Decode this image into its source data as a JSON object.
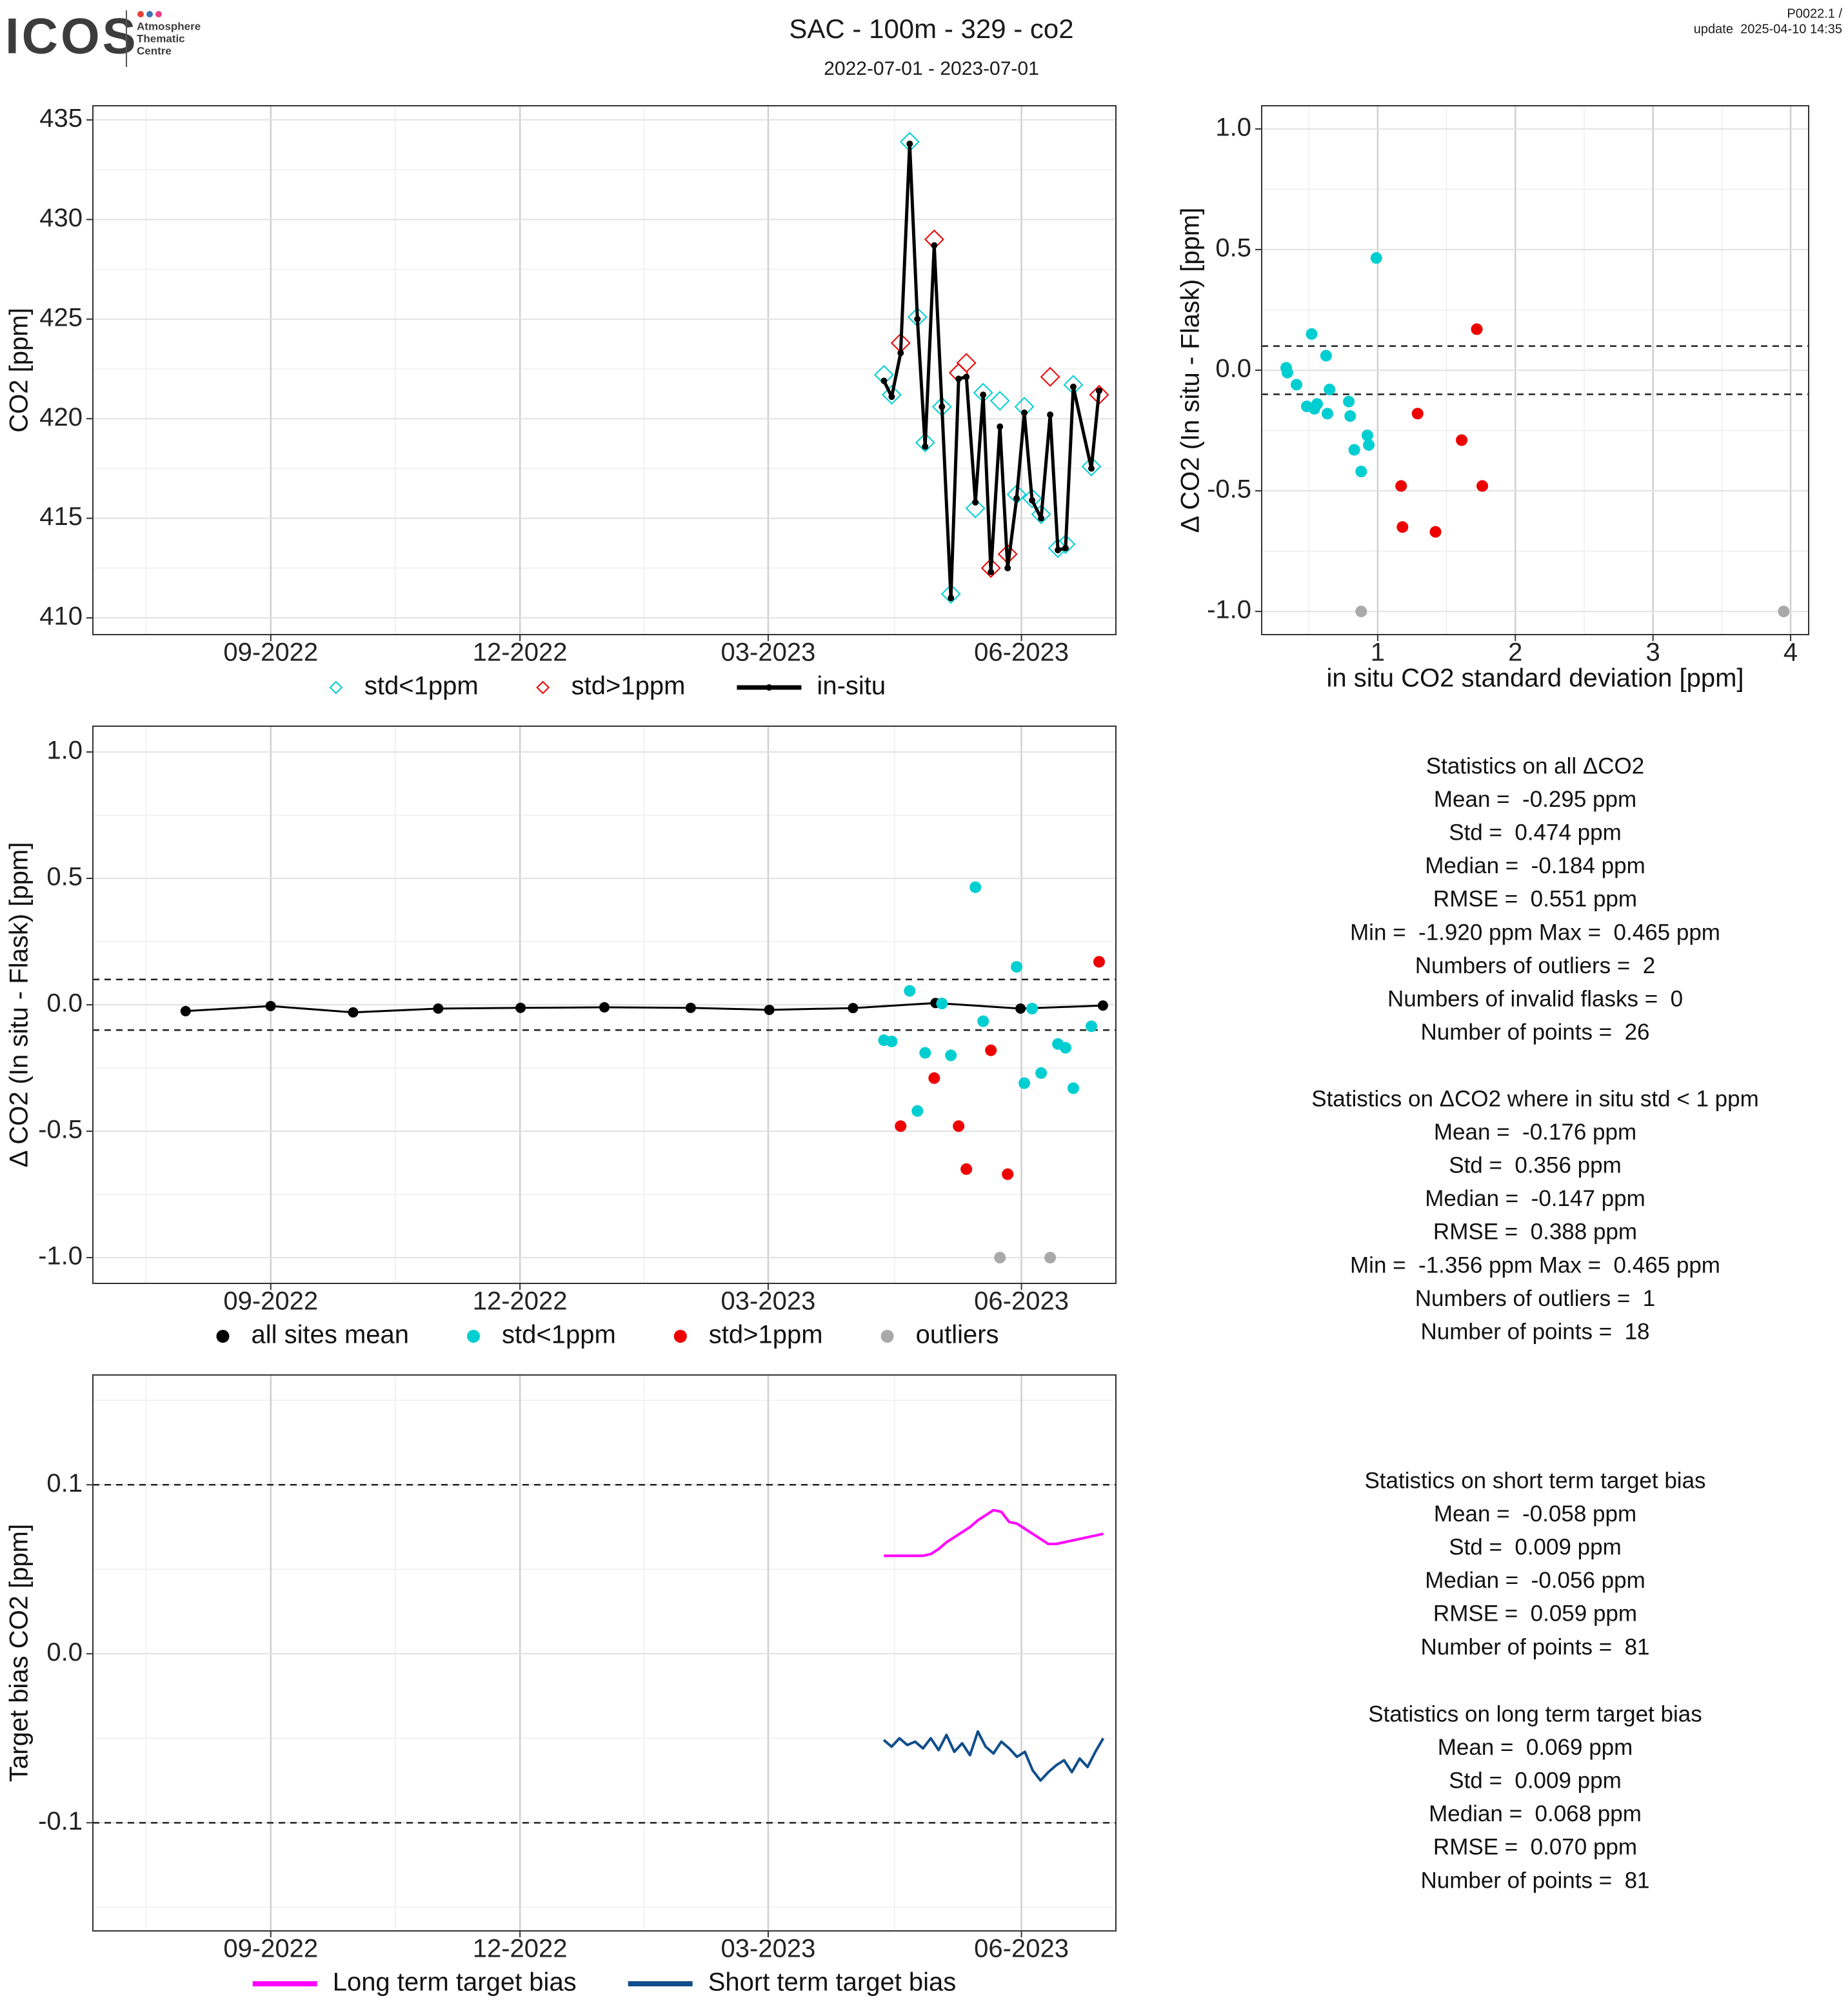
{
  "header": {
    "logo": "ICOS",
    "logo_caption": [
      "Atmosphere",
      "Thematic",
      "Centre"
    ],
    "title": "SAC - 100m - 329 - co2",
    "subtitle": "2022-07-01 - 2023-07-01",
    "version": "P0022.1 /",
    "update": "update  2025-04-10 14:35"
  },
  "chart_data": [
    {
      "type": "line",
      "ylabel": "CO2 [ppm]",
      "xlim": [
        2022.49,
        2023.508
      ],
      "xticks": [
        {
          "value": 2022.667,
          "label": "09-2022"
        },
        {
          "value": 2022.915,
          "label": "12-2022"
        },
        {
          "value": 2023.162,
          "label": "03-2023"
        },
        {
          "value": 2023.414,
          "label": "06-2023"
        }
      ],
      "ylim": [
        409.16,
        435.71
      ],
      "yticks": [
        410,
        415,
        420,
        425,
        430,
        435
      ],
      "grid": true,
      "minor_grid": true,
      "legend": "bottom",
      "series": [
        {
          "name": "std<1ppm",
          "color": "#00CED1",
          "style": "diamond",
          "x": [
            2023.2772,
            2023.2849,
            2023.3028,
            2023.3105,
            2023.3182,
            2023.3349,
            2023.3438,
            2023.3682,
            2023.3759,
            2023.3926,
            2023.4092,
            2023.4169,
            2023.4246,
            2023.4336,
            2023.4503,
            2023.4579,
            2023.4656,
            2023.4836
          ],
          "values": [
            422.2,
            421.2,
            433.9,
            425.1,
            418.8,
            420.6,
            411.2,
            415.5,
            421.3,
            420.9,
            416.2,
            420.6,
            416.0,
            415.2,
            413.5,
            413.7,
            421.7,
            417.6
          ]
        },
        {
          "name": "std>1ppm",
          "color": "#EE0000",
          "style": "diamond",
          "x": [
            2023.2938,
            2023.3272,
            2023.3515,
            2023.3592,
            2023.3836,
            2023.4003,
            2023.4426,
            2023.4913
          ],
          "values": [
            423.8,
            429.0,
            422.3,
            422.8,
            412.5,
            413.2,
            422.1,
            421.2
          ]
        },
        {
          "name": "in-situ",
          "color": "#000000",
          "style": "line-dot",
          "x": [
            2023.2772,
            2023.2849,
            2023.2938,
            2023.3028,
            2023.3105,
            2023.3182,
            2023.3272,
            2023.3349,
            2023.3438,
            2023.3515,
            2023.3592,
            2023.3682,
            2023.3759,
            2023.3836,
            2023.3926,
            2023.4003,
            2023.4092,
            2023.4169,
            2023.4246,
            2023.4336,
            2023.4426,
            2023.4503,
            2023.4579,
            2023.4656,
            2023.4836,
            2023.4913
          ],
          "values": [
            421.9,
            421.1,
            423.3,
            433.8,
            425.0,
            418.6,
            428.7,
            420.6,
            411.0,
            422.0,
            422.1,
            415.8,
            421.2,
            412.3,
            419.6,
            412.5,
            416.0,
            420.3,
            415.9,
            415.0,
            420.2,
            413.4,
            413.5,
            421.6,
            417.5,
            421.4
          ]
        }
      ]
    },
    {
      "type": "scatter",
      "xlabel": "in situ CO2 standard deviation [ppm]",
      "ylabel": "Δ CO2 (In situ - Flask) [ppm]",
      "xlim": [
        0.157,
        4.131
      ],
      "xticks": [
        1,
        2,
        3,
        4
      ],
      "ylim": [
        -1.096,
        1.096
      ],
      "yticks": [
        {
          "value": -1,
          "label": "-1.0"
        },
        {
          "value": -0.5,
          "label": "-0.5"
        },
        {
          "value": 0,
          "label": "0.0"
        },
        {
          "value": 0.5,
          "label": "0.5"
        },
        {
          "value": 1,
          "label": "1.0"
        }
      ],
      "hlines": [
        0.1,
        -0.1
      ],
      "grid": true,
      "minor_grid": true,
      "series": [
        {
          "color": "#00CED1",
          "style": "dot",
          "x": [
            0.335,
            0.344,
            0.41,
            0.485,
            0.52,
            0.54,
            0.56,
            0.625,
            0.635,
            0.65,
            0.79,
            0.8,
            0.83,
            0.88,
            0.925,
            0.935,
            0.99
          ],
          "values": [
            0.01,
            -0.01,
            -0.06,
            -0.15,
            0.15,
            -0.16,
            -0.14,
            0.06,
            -0.18,
            -0.08,
            -0.13,
            -0.19,
            -0.33,
            -0.42,
            -0.27,
            -0.31,
            0.465
          ]
        },
        {
          "color": "#EE0000",
          "style": "dot",
          "x": [
            1.17,
            1.18,
            1.29,
            1.42,
            1.61,
            1.72,
            1.76
          ],
          "values": [
            -0.48,
            -0.65,
            -0.18,
            -0.67,
            -0.29,
            0.17,
            -0.48
          ]
        },
        {
          "color": "#A9A9A9",
          "style": "dot",
          "x": [
            0.88,
            3.95
          ],
          "values": [
            -1.0,
            -1.0
          ]
        }
      ]
    },
    {
      "type": "scatter",
      "ylabel": "Δ CO2 (In situ - Flask) [ppm]",
      "xlim": [
        2022.49,
        2023.508
      ],
      "xticks": [
        {
          "value": 2022.667,
          "label": "09-2022"
        },
        {
          "value": 2022.915,
          "label": "12-2022"
        },
        {
          "value": 2023.162,
          "label": "03-2023"
        },
        {
          "value": 2023.414,
          "label": "06-2023"
        }
      ],
      "ylim": [
        -1.102,
        1.102
      ],
      "yticks": [
        {
          "value": -1,
          "label": "-1.0"
        },
        {
          "value": -0.5,
          "label": "-0.5"
        },
        {
          "value": 0,
          "label": "0.0"
        },
        {
          "value": 0.5,
          "label": "0.5"
        },
        {
          "value": 1,
          "label": "1.0"
        }
      ],
      "hlines": [
        0.1,
        -0.1
      ],
      "grid": true,
      "minor_grid": true,
      "legend": "bottom",
      "series": [
        {
          "name": "all sites mean",
          "color": "#000000",
          "style": "line-dot",
          "x": [
            2022.5823,
            2022.6669,
            2022.749,
            2022.8336,
            2022.9156,
            2022.999,
            2023.0849,
            2023.1631,
            2023.2464,
            2023.3285,
            2023.4131,
            2023.4951
          ],
          "values": [
            -0.025,
            -0.005,
            -0.03,
            -0.015,
            -0.012,
            -0.01,
            -0.012,
            -0.02,
            -0.013,
            0.007,
            -0.015,
            -0.003
          ]
        },
        {
          "name": "std<1ppm",
          "color": "#00CED1",
          "style": "dot",
          "x": [
            2023.2772,
            2023.2849,
            2023.3028,
            2023.3105,
            2023.3182,
            2023.3349,
            2023.3438,
            2023.3682,
            2023.3759,
            2023.4092,
            2023.4169,
            2023.4246,
            2023.4336,
            2023.4503,
            2023.4579,
            2023.4656,
            2023.4836
          ],
          "values": [
            -0.14,
            -0.145,
            0.055,
            -0.42,
            -0.19,
            0.005,
            -0.2,
            0.465,
            -0.065,
            0.15,
            -0.31,
            -0.015,
            -0.27,
            -0.155,
            -0.17,
            -0.33,
            -0.085
          ]
        },
        {
          "name": "std>1ppm",
          "color": "#EE0000",
          "style": "dot",
          "x": [
            2023.2938,
            2023.3272,
            2023.3515,
            2023.3592,
            2023.3836,
            2023.4003,
            2023.4913
          ],
          "values": [
            -0.48,
            -0.29,
            -0.48,
            -0.65,
            -0.18,
            -0.67,
            0.17
          ]
        },
        {
          "name": "outliers",
          "color": "#A9A9A9",
          "style": "dot",
          "x": [
            2023.3926,
            2023.4426
          ],
          "values": [
            -1.0,
            -1.0
          ]
        }
      ]
    },
    {
      "type": "line",
      "ylabel": "Target bias CO2 [ppm]",
      "xlim": [
        2022.49,
        2023.508
      ],
      "xticks": [
        {
          "value": 2022.667,
          "label": "09-2022"
        },
        {
          "value": 2022.915,
          "label": "12-2022"
        },
        {
          "value": 2023.162,
          "label": "03-2023"
        },
        {
          "value": 2023.414,
          "label": "06-2023"
        }
      ],
      "ylim": [
        -0.164,
        0.165
      ],
      "yticks": [
        {
          "value": -0.1,
          "label": "-0.1"
        },
        {
          "value": 0,
          "label": "0.0"
        },
        {
          "value": 0.1,
          "label": "0.1"
        }
      ],
      "hlines": [
        0.1,
        -0.1
      ],
      "grid": true,
      "minor_grid": true,
      "legend": "bottom",
      "series": [
        {
          "name": "Long term target bias",
          "color": "#FF00FF",
          "style": "line",
          "x": [
            2023.277,
            2023.2848,
            2023.2926,
            2023.3004,
            2023.3082,
            2023.316,
            2023.3238,
            2023.3316,
            2023.3394,
            2023.3472,
            2023.355,
            2023.3628,
            2023.3706,
            2023.3784,
            2023.3862,
            2023.394,
            2023.4018,
            2023.4096,
            2023.4174,
            2023.4252,
            2023.433,
            2023.4408,
            2023.4486,
            2023.4564,
            2023.4642,
            2023.472,
            2023.4798,
            2023.4876,
            2023.4954
          ],
          "values": [
            0.058,
            0.058,
            0.058,
            0.058,
            0.058,
            0.058,
            0.059,
            0.062,
            0.066,
            0.069,
            0.072,
            0.075,
            0.079,
            0.082,
            0.085,
            0.084,
            0.078,
            0.077,
            0.074,
            0.071,
            0.068,
            0.065,
            0.065,
            0.066,
            0.067,
            0.068,
            0.069,
            0.07,
            0.071
          ]
        },
        {
          "name": "Short term target bias",
          "color": "#104E8B",
          "style": "line",
          "x": [
            2023.277,
            2023.2848,
            2023.2926,
            2023.3004,
            2023.3082,
            2023.316,
            2023.3238,
            2023.3316,
            2023.3394,
            2023.3472,
            2023.355,
            2023.3628,
            2023.3706,
            2023.3784,
            2023.3862,
            2023.394,
            2023.4018,
            2023.4096,
            2023.4174,
            2023.4252,
            2023.433,
            2023.4408,
            2023.4486,
            2023.4564,
            2023.4642,
            2023.472,
            2023.4798,
            2023.4876,
            2023.4954
          ],
          "values": [
            -0.051,
            -0.055,
            -0.05,
            -0.054,
            -0.052,
            -0.056,
            -0.05,
            -0.057,
            -0.048,
            -0.058,
            -0.053,
            -0.06,
            -0.046,
            -0.055,
            -0.059,
            -0.052,
            -0.056,
            -0.061,
            -0.058,
            -0.069,
            -0.075,
            -0.07,
            -0.066,
            -0.063,
            -0.07,
            -0.062,
            -0.067,
            -0.058,
            -0.05
          ]
        }
      ]
    }
  ],
  "stats": [
    {
      "title": "Statistics on all ΔCO2",
      "lines": [
        "Mean =  -0.295 ppm",
        "Std =  0.474 ppm",
        "Median =  -0.184 ppm",
        "RMSE =  0.551 ppm",
        "Min =  -1.920 ppm Max =  0.465 ppm",
        "Numbers of outliers =  2",
        "Numbers of invalid flasks =  0",
        "Number of points =  26"
      ]
    },
    {
      "title": "Statistics on ΔCO2 where in situ std < 1 ppm",
      "lines": [
        "Mean =  -0.176 ppm",
        "Std =  0.356 ppm",
        "Median =  -0.147 ppm",
        "RMSE =  0.388 ppm",
        "Min =  -1.356 ppm Max =  0.465 ppm",
        "Numbers of outliers =  1",
        "Number of points =  18"
      ]
    },
    {
      "title": "Statistics on short term target bias",
      "lines": [
        "Mean =  -0.058 ppm",
        "Std =  0.009 ppm",
        "Median =  -0.056 ppm",
        "RMSE =  0.059 ppm",
        "Number of points =  81"
      ]
    },
    {
      "title": "Statistics on long term target bias",
      "lines": [
        "Mean =  0.069 ppm",
        "Std =  0.009 ppm",
        "Median =  0.068 ppm",
        "RMSE =  0.070 ppm",
        "Number of points =  81"
      ]
    }
  ]
}
